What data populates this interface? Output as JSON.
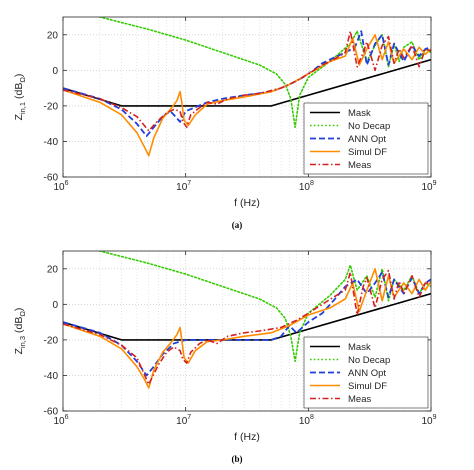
{
  "chart_data": [
    {
      "type": "line",
      "caption": "(a)",
      "xscale": "log",
      "xlim": [
        1000000,
        1000000000
      ],
      "ylim": [
        -60,
        30
      ],
      "xlabel": "f (Hz)",
      "ylabel": "Zin,1 (dBΩ)",
      "ylabel_main": "Z",
      "ylabel_sub": "in,1",
      "ylabel_paren_open": " (dB",
      "ylabel_unit_sub": "Ω",
      "ylabel_paren_close": ")",
      "x_ticks": [
        {
          "value": 1000000,
          "base": "10",
          "exp": "6"
        },
        {
          "value": 10000000,
          "base": "10",
          "exp": "7"
        },
        {
          "value": 100000000,
          "base": "10",
          "exp": "8"
        },
        {
          "value": 1000000000,
          "base": "10",
          "exp": "9"
        }
      ],
      "y_ticks": [
        {
          "value": 20,
          "label": "20"
        },
        {
          "value": 0,
          "label": "0"
        },
        {
          "value": -20,
          "label": "-20"
        },
        {
          "value": -40,
          "label": "-40"
        },
        {
          "value": -60,
          "label": "-60"
        }
      ],
      "grid": true,
      "legend_position": "lower-right",
      "series": [
        {
          "name": "Mask",
          "color": "#000000",
          "dash": "solid",
          "x": [
            1000000,
            3000000,
            50000000,
            1000000000
          ],
          "y": [
            -10,
            -20,
            -20,
            6
          ]
        },
        {
          "name": "No Decap",
          "color": "#33cc00",
          "dash": "dotted",
          "x": [
            1000000,
            2000000,
            5000000,
            10000000,
            20000000,
            40000000,
            55000000,
            65000000,
            72000000,
            78000000,
            85000000,
            100000000,
            150000000,
            220000000,
            250000000,
            300000000,
            350000000,
            400000000,
            450000000,
            500000000,
            550000000,
            600000000,
            700000000,
            800000000,
            900000000,
            1000000000
          ],
          "y": [
            36,
            30,
            23,
            17,
            10,
            3,
            -2,
            -8,
            -16,
            -32,
            -14,
            -4,
            5,
            15,
            22,
            5,
            14,
            20,
            2,
            15,
            5,
            13,
            16,
            6,
            12,
            10
          ]
        },
        {
          "name": "ANN Opt",
          "color": "#1f3fdc",
          "dash": "dashed",
          "x": [
            1000000,
            2000000,
            3000000,
            4000000,
            4800000,
            5500000,
            6500000,
            7500000,
            8000000,
            9000000,
            10000000,
            15000000,
            20000000,
            30000000,
            50000000,
            70000000,
            90000000,
            110000000,
            130000000,
            160000000,
            200000000,
            240000000,
            270000000,
            300000000,
            350000000,
            400000000,
            450000000,
            500000000,
            600000000,
            700000000,
            800000000,
            900000000,
            1000000000
          ],
          "y": [
            -10,
            -16,
            -22,
            -30,
            -37,
            -32,
            -26,
            -23,
            -25,
            -29,
            -23,
            -18,
            -16,
            -14,
            -12,
            -8,
            -4,
            0,
            4,
            7,
            10,
            13,
            22,
            3,
            15,
            20,
            3,
            15,
            5,
            14,
            8,
            12,
            13
          ]
        },
        {
          "name": "Simul DF",
          "color": "#ff8c00",
          "dash": "solid",
          "x": [
            1000000,
            2000000,
            3000000,
            4000000,
            4600000,
            5000000,
            5500000,
            6500000,
            7500000,
            8500000,
            9000000,
            9300000,
            9700000,
            10500000,
            12000000,
            15000000,
            20000000,
            30000000,
            50000000,
            70000000,
            100000000,
            150000000,
            200000000,
            230000000,
            260000000,
            300000000,
            350000000,
            400000000,
            450000000,
            500000000,
            600000000,
            700000000,
            800000000,
            900000000,
            1000000000
          ],
          "y": [
            -11,
            -18,
            -25,
            -35,
            -43,
            -48,
            -38,
            -27,
            -22,
            -17,
            -12,
            -18,
            -28,
            -31,
            -25,
            -19,
            -17,
            -15,
            -12,
            -8,
            -2,
            5,
            8,
            18,
            3,
            12,
            20,
            6,
            16,
            4,
            12,
            6,
            13,
            9,
            12
          ]
        },
        {
          "name": "Meas",
          "color": "#d62020",
          "dash": "dashdot",
          "x": [
            1000000,
            2000000,
            3000000,
            4000000,
            5000000,
            6000000,
            7000000,
            8000000,
            9000000,
            9500000,
            10200000,
            11000000,
            13000000,
            15000000,
            18000000,
            22000000,
            30000000,
            40000000,
            60000000,
            80000000,
            100000000,
            130000000,
            160000000,
            200000000,
            220000000,
            250000000,
            280000000,
            300000000,
            350000000,
            400000000,
            450000000,
            500000000,
            550000000,
            600000000,
            700000000,
            800000000,
            900000000,
            1000000000
          ],
          "y": [
            -11,
            -16,
            -21,
            -26,
            -34,
            -28,
            -24,
            -22,
            -23,
            -29,
            -32,
            -25,
            -21,
            -18,
            -19,
            -16,
            -14,
            -13,
            -10,
            -6,
            -2,
            3,
            6,
            10,
            22,
            2,
            10,
            16,
            0,
            14,
            19,
            4,
            12,
            7,
            14,
            2,
            12,
            11
          ]
        }
      ]
    },
    {
      "type": "line",
      "caption": "(b)",
      "xscale": "log",
      "xlim": [
        1000000,
        1000000000
      ],
      "ylim": [
        -60,
        30
      ],
      "xlabel": "f (Hz)",
      "ylabel": "Zin,3 (dBΩ)",
      "ylabel_main": "Z",
      "ylabel_sub": "in,3",
      "ylabel_paren_open": " (dB",
      "ylabel_unit_sub": "Ω",
      "ylabel_paren_close": ")",
      "x_ticks": [
        {
          "value": 1000000,
          "base": "10",
          "exp": "6"
        },
        {
          "value": 10000000,
          "base": "10",
          "exp": "7"
        },
        {
          "value": 100000000,
          "base": "10",
          "exp": "8"
        },
        {
          "value": 1000000000,
          "base": "10",
          "exp": "9"
        }
      ],
      "y_ticks": [
        {
          "value": 20,
          "label": "20"
        },
        {
          "value": 0,
          "label": "0"
        },
        {
          "value": -20,
          "label": "-20"
        },
        {
          "value": -40,
          "label": "-40"
        },
        {
          "value": -60,
          "label": "-60"
        }
      ],
      "grid": true,
      "legend_position": "lower-right",
      "series": [
        {
          "name": "Mask",
          "color": "#000000",
          "dash": "solid",
          "x": [
            1000000,
            3000000,
            50000000,
            1000000000
          ],
          "y": [
            -10,
            -20,
            -20,
            6
          ]
        },
        {
          "name": "No Decap",
          "color": "#33cc00",
          "dash": "dotted",
          "x": [
            1000000,
            2000000,
            5000000,
            10000000,
            20000000,
            40000000,
            55000000,
            65000000,
            72000000,
            78000000,
            85000000,
            100000000,
            150000000,
            200000000,
            220000000,
            250000000,
            300000000,
            350000000,
            400000000,
            450000000,
            500000000,
            600000000,
            700000000,
            800000000,
            900000000,
            1000000000
          ],
          "y": [
            36,
            30,
            23,
            17,
            10,
            3,
            -2,
            -8,
            -18,
            -32,
            -16,
            -5,
            5,
            14,
            22,
            8,
            16,
            4,
            20,
            2,
            14,
            8,
            16,
            6,
            12,
            10
          ]
        },
        {
          "name": "ANN Opt",
          "color": "#1f3fdc",
          "dash": "dashed",
          "x": [
            1000000,
            2000000,
            3000000,
            4000000,
            4800000,
            5500000,
            6500000,
            7500000,
            8000000,
            9000000,
            10000000,
            15000000,
            20000000,
            30000000,
            50000000,
            60000000,
            70000000,
            80000000,
            100000000,
            130000000,
            160000000,
            200000000,
            250000000,
            300000000,
            350000000,
            400000000,
            450000000,
            500000000,
            600000000,
            700000000,
            800000000,
            900000000,
            1000000000
          ],
          "y": [
            -10,
            -16,
            -23,
            -32,
            -40,
            -35,
            -28,
            -24,
            -22,
            -21,
            -20,
            -20,
            -20,
            -20,
            -20,
            -18,
            -12,
            -16,
            -10,
            -5,
            2,
            10,
            14,
            6,
            12,
            18,
            4,
            14,
            6,
            15,
            6,
            12,
            14
          ]
        },
        {
          "name": "Simul DF",
          "color": "#ff8c00",
          "dash": "solid",
          "x": [
            1000000,
            2000000,
            3000000,
            4000000,
            4600000,
            5000000,
            5500000,
            6500000,
            7500000,
            8500000,
            9000000,
            9300000,
            9700000,
            10500000,
            12000000,
            15000000,
            20000000,
            30000000,
            50000000,
            70000000,
            100000000,
            150000000,
            200000000,
            230000000,
            260000000,
            300000000,
            350000000,
            400000000,
            450000000,
            500000000,
            600000000,
            700000000,
            800000000,
            900000000,
            1000000000
          ],
          "y": [
            -11,
            -18,
            -25,
            -35,
            -42,
            -47,
            -37,
            -27,
            -22,
            -17,
            -13,
            -20,
            -30,
            -33,
            -26,
            -21,
            -20,
            -18,
            -16,
            -12,
            -6,
            -2,
            3,
            12,
            -4,
            8,
            20,
            2,
            16,
            4,
            12,
            6,
            14,
            8,
            13
          ]
        },
        {
          "name": "Meas",
          "color": "#d62020",
          "dash": "dashdot",
          "x": [
            1000000,
            2000000,
            3000000,
            4000000,
            5000000,
            6000000,
            7000000,
            8000000,
            9000000,
            9500000,
            10200000,
            11000000,
            13000000,
            15000000,
            18000000,
            22000000,
            30000000,
            40000000,
            60000000,
            80000000,
            100000000,
            130000000,
            160000000,
            200000000,
            220000000,
            250000000,
            280000000,
            300000000,
            350000000,
            400000000,
            450000000,
            500000000,
            550000000,
            600000000,
            700000000,
            800000000,
            900000000,
            1000000000
          ],
          "y": [
            -11,
            -17,
            -23,
            -30,
            -45,
            -34,
            -27,
            -24,
            -26,
            -31,
            -33,
            -27,
            -22,
            -20,
            -22,
            -18,
            -16,
            -15,
            -13,
            -9,
            -5,
            0,
            4,
            8,
            18,
            -6,
            10,
            15,
            -2,
            14,
            19,
            3,
            13,
            6,
            16,
            4,
            12,
            12
          ]
        }
      ]
    }
  ]
}
